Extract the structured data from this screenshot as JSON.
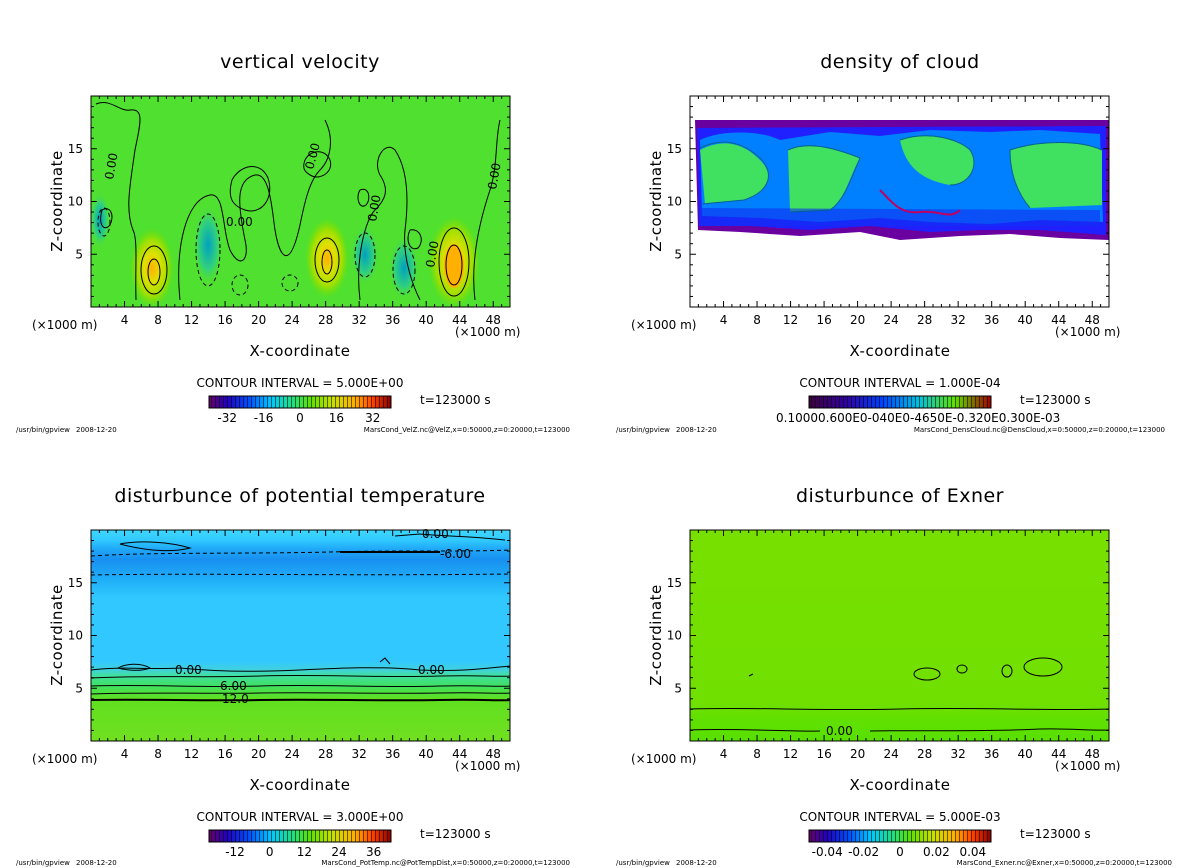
{
  "footer_program": "/usr/bin/gpview",
  "footer_date": "2008-12-20",
  "chart_data": [
    {
      "type": "heatmap",
      "title": "vertical velocity",
      "xlabel": "X-coordinate",
      "ylabel": "Z-coordinate",
      "x_unit_label": "(×1000 m)",
      "x_unit_label_right": "(×1000 m)",
      "xlim": [
        0,
        50
      ],
      "ylim": [
        0,
        20
      ],
      "xticks": [
        "4",
        "8",
        "12",
        "16",
        "20",
        "24",
        "28",
        "32",
        "36",
        "40",
        "44",
        "48"
      ],
      "yticks": [
        "5",
        "10",
        "15"
      ],
      "contour_interval": "CONTOUR INTERVAL = 5.000E+00",
      "time": "t=123000 s",
      "colorbar_ticks": [
        "-32",
        "-16",
        "0",
        "16",
        "32"
      ],
      "colorbar_range": [
        -40,
        40
      ],
      "colorbar_style": "rainbow",
      "source": "MarsCond_VelZ.nc@VelZ,x=0:50000,z=0:20000,t=123000",
      "contour_labels": [
        "0.00",
        "0.00",
        "0.00",
        "0.00",
        "0.00",
        "0.00"
      ]
    },
    {
      "type": "heatmap",
      "title": "density of cloud",
      "xlabel": "X-coordinate",
      "ylabel": "Z-coordinate",
      "x_unit_label": "(×1000 m)",
      "x_unit_label_right": "(×1000 m)",
      "xlim": [
        0,
        50
      ],
      "ylim": [
        0,
        20
      ],
      "xticks": [
        "4",
        "8",
        "12",
        "16",
        "20",
        "24",
        "28",
        "32",
        "36",
        "40",
        "44",
        "48"
      ],
      "yticks": [
        "5",
        "10",
        "15"
      ],
      "contour_interval": "CONTOUR INTERVAL = 1.000E-04",
      "time": "t=123000 s",
      "colorbar_ticks": [
        "0.10000.600E0-040E0-4650E-0.320E0.300E-03"
      ],
      "colorbar_range": [
        0,
        1
      ],
      "colorbar_style": "cloud",
      "source": "MarsCond_DensCloud.nc@DensCloud,x=0:50000,z=0:20000,t=123000",
      "contour_labels": []
    },
    {
      "type": "heatmap",
      "title": "disturbunce of potential temperature",
      "xlabel": "X-coordinate",
      "ylabel": "Z-coordinate",
      "x_unit_label": "(×1000 m)",
      "x_unit_label_right": "(×1000 m)",
      "xlim": [
        0,
        50
      ],
      "ylim": [
        0,
        20
      ],
      "xticks": [
        "4",
        "8",
        "12",
        "16",
        "20",
        "24",
        "28",
        "32",
        "36",
        "40",
        "44",
        "48"
      ],
      "yticks": [
        "5",
        "10",
        "15"
      ],
      "contour_interval": "CONTOUR INTERVAL = 3.000E+00",
      "time": "t=123000 s",
      "colorbar_ticks": [
        "-12",
        "0",
        "12",
        "24",
        "36"
      ],
      "colorbar_range": [
        -21,
        42
      ],
      "colorbar_style": "rainbow",
      "source": "MarsCond_PotTemp.nc@PotTempDist,x=0:50000,z=0:20000,t=123000",
      "contour_labels": [
        "0.00",
        "-6.00",
        "0.00",
        "0.00",
        "6.00",
        "12.0"
      ]
    },
    {
      "type": "heatmap",
      "title": "disturbunce of Exner",
      "xlabel": "X-coordinate",
      "ylabel": "Z-coordinate",
      "x_unit_label": "(×1000 m)",
      "x_unit_label_right": "(×1000 m)",
      "xlim": [
        0,
        50
      ],
      "ylim": [
        0,
        20
      ],
      "xticks": [
        "4",
        "8",
        "12",
        "16",
        "20",
        "24",
        "28",
        "32",
        "36",
        "40",
        "44",
        "48"
      ],
      "yticks": [
        "5",
        "10",
        "15"
      ],
      "contour_interval": "CONTOUR INTERVAL = 5.000E-03",
      "time": "t=123000 s",
      "colorbar_ticks": [
        "-0.04",
        "-0.02",
        "0",
        "0.02",
        "0.04"
      ],
      "colorbar_range": [
        -0.05,
        0.05
      ],
      "colorbar_style": "rainbow",
      "source": "MarsCond_Exner.nc@Exner,x=0:50000,z=0:20000,t=123000",
      "contour_labels": [
        "0.00"
      ]
    }
  ]
}
